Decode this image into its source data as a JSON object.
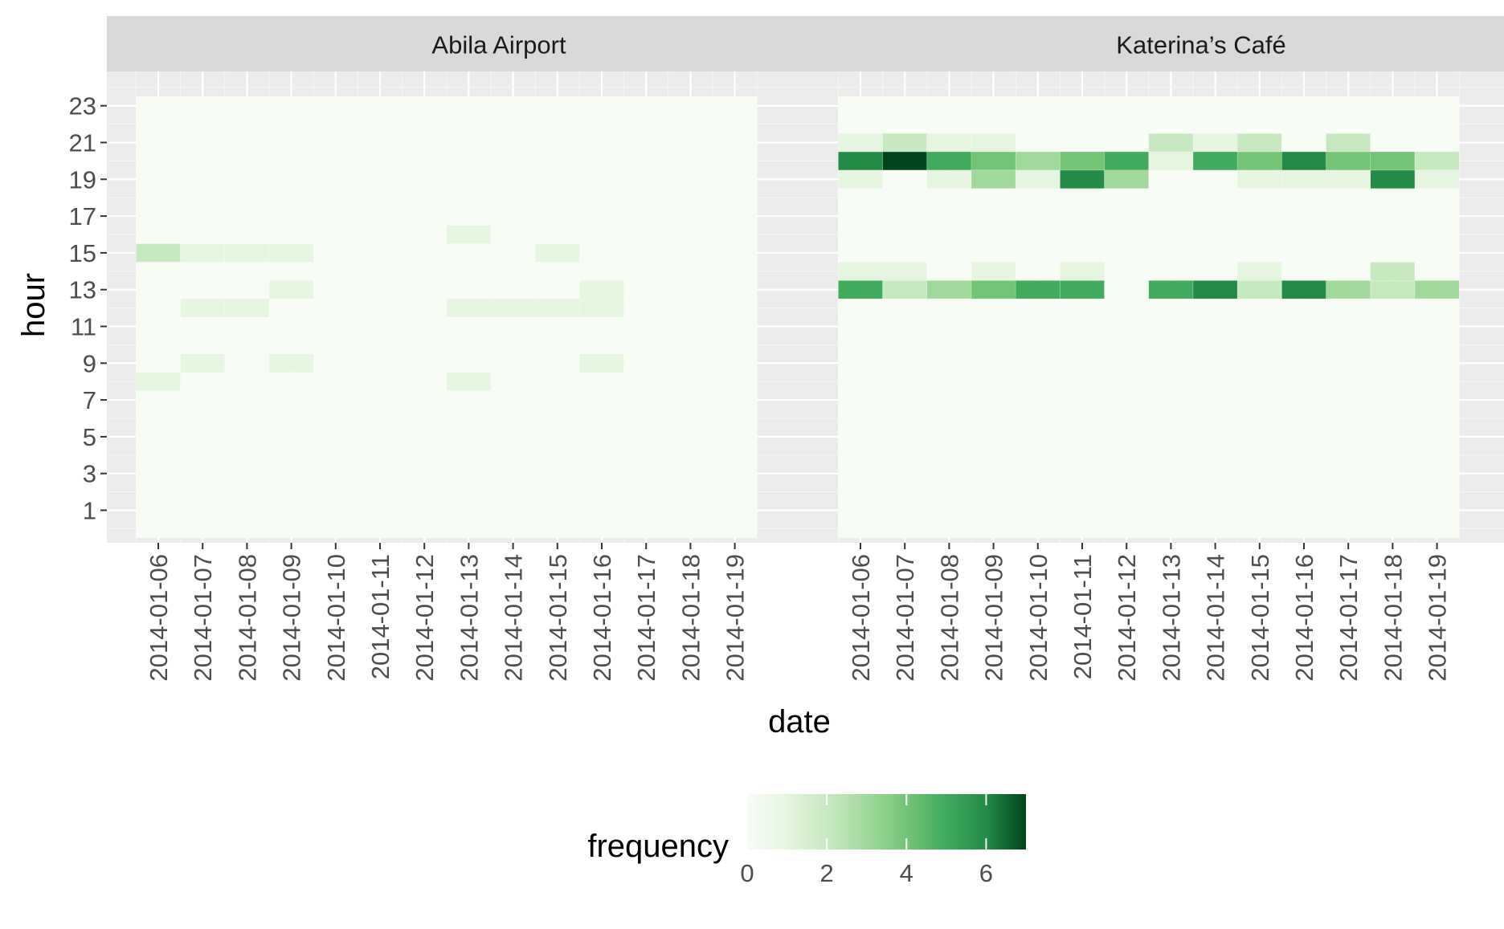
{
  "chart_data": {
    "type": "heatmap",
    "xlabel": "date",
    "ylabel": "hour",
    "x_categories": [
      "2014-01-06",
      "2014-01-07",
      "2014-01-08",
      "2014-01-09",
      "2014-01-10",
      "2014-01-11",
      "2014-01-12",
      "2014-01-13",
      "2014-01-14",
      "2014-01-15",
      "2014-01-16",
      "2014-01-17",
      "2014-01-18",
      "2014-01-19"
    ],
    "y_ticks": [
      1,
      3,
      5,
      7,
      9,
      11,
      13,
      15,
      17,
      19,
      21,
      23
    ],
    "y_range": [
      0,
      23
    ],
    "grid": true,
    "legend": {
      "title": "frequency",
      "position": "bottom",
      "ticks": [
        0,
        2,
        4,
        6
      ],
      "range": [
        0,
        7
      ],
      "color_low": "#f7fcf5",
      "color_high": "#00441b"
    },
    "panels": [
      {
        "title": "Abila Airport",
        "cells": [
          {
            "date": "2014-01-06",
            "hour": 8,
            "value": 1
          },
          {
            "date": "2014-01-06",
            "hour": 15,
            "value": 2
          },
          {
            "date": "2014-01-07",
            "hour": 9,
            "value": 1
          },
          {
            "date": "2014-01-07",
            "hour": 12,
            "value": 1
          },
          {
            "date": "2014-01-07",
            "hour": 15,
            "value": 1
          },
          {
            "date": "2014-01-08",
            "hour": 12,
            "value": 1
          },
          {
            "date": "2014-01-08",
            "hour": 15,
            "value": 1
          },
          {
            "date": "2014-01-09",
            "hour": 9,
            "value": 1
          },
          {
            "date": "2014-01-09",
            "hour": 13,
            "value": 1
          },
          {
            "date": "2014-01-09",
            "hour": 15,
            "value": 1
          },
          {
            "date": "2014-01-13",
            "hour": 8,
            "value": 1
          },
          {
            "date": "2014-01-13",
            "hour": 12,
            "value": 1
          },
          {
            "date": "2014-01-13",
            "hour": 16,
            "value": 1
          },
          {
            "date": "2014-01-14",
            "hour": 12,
            "value": 1
          },
          {
            "date": "2014-01-15",
            "hour": 12,
            "value": 1
          },
          {
            "date": "2014-01-15",
            "hour": 15,
            "value": 1
          },
          {
            "date": "2014-01-16",
            "hour": 9,
            "value": 1
          },
          {
            "date": "2014-01-16",
            "hour": 12,
            "value": 1
          },
          {
            "date": "2014-01-16",
            "hour": 13,
            "value": 1
          }
        ]
      },
      {
        "title": "Katerina’s Café",
        "cells": [
          {
            "date": "2014-01-06",
            "hour": 13,
            "value": 5
          },
          {
            "date": "2014-01-06",
            "hour": 14,
            "value": 1
          },
          {
            "date": "2014-01-06",
            "hour": 19,
            "value": 1
          },
          {
            "date": "2014-01-06",
            "hour": 20,
            "value": 6
          },
          {
            "date": "2014-01-06",
            "hour": 21,
            "value": 1
          },
          {
            "date": "2014-01-07",
            "hour": 13,
            "value": 2
          },
          {
            "date": "2014-01-07",
            "hour": 14,
            "value": 1
          },
          {
            "date": "2014-01-07",
            "hour": 20,
            "value": 7
          },
          {
            "date": "2014-01-07",
            "hour": 21,
            "value": 2
          },
          {
            "date": "2014-01-08",
            "hour": 13,
            "value": 3
          },
          {
            "date": "2014-01-08",
            "hour": 19,
            "value": 1
          },
          {
            "date": "2014-01-08",
            "hour": 20,
            "value": 5
          },
          {
            "date": "2014-01-08",
            "hour": 21,
            "value": 1
          },
          {
            "date": "2014-01-09",
            "hour": 13,
            "value": 4
          },
          {
            "date": "2014-01-09",
            "hour": 14,
            "value": 1
          },
          {
            "date": "2014-01-09",
            "hour": 19,
            "value": 3
          },
          {
            "date": "2014-01-09",
            "hour": 20,
            "value": 4
          },
          {
            "date": "2014-01-09",
            "hour": 21,
            "value": 1
          },
          {
            "date": "2014-01-10",
            "hour": 13,
            "value": 5
          },
          {
            "date": "2014-01-10",
            "hour": 19,
            "value": 1
          },
          {
            "date": "2014-01-10",
            "hour": 20,
            "value": 3
          },
          {
            "date": "2014-01-11",
            "hour": 13,
            "value": 5
          },
          {
            "date": "2014-01-11",
            "hour": 14,
            "value": 1
          },
          {
            "date": "2014-01-11",
            "hour": 19,
            "value": 6
          },
          {
            "date": "2014-01-11",
            "hour": 20,
            "value": 4
          },
          {
            "date": "2014-01-12",
            "hour": 19,
            "value": 3
          },
          {
            "date": "2014-01-12",
            "hour": 20,
            "value": 5
          },
          {
            "date": "2014-01-13",
            "hour": 13,
            "value": 5
          },
          {
            "date": "2014-01-13",
            "hour": 20,
            "value": 1
          },
          {
            "date": "2014-01-13",
            "hour": 21,
            "value": 2
          },
          {
            "date": "2014-01-14",
            "hour": 13,
            "value": 6
          },
          {
            "date": "2014-01-14",
            "hour": 20,
            "value": 5
          },
          {
            "date": "2014-01-14",
            "hour": 21,
            "value": 1
          },
          {
            "date": "2014-01-15",
            "hour": 13,
            "value": 2
          },
          {
            "date": "2014-01-15",
            "hour": 14,
            "value": 1
          },
          {
            "date": "2014-01-15",
            "hour": 19,
            "value": 1
          },
          {
            "date": "2014-01-15",
            "hour": 20,
            "value": 4
          },
          {
            "date": "2014-01-15",
            "hour": 21,
            "value": 2
          },
          {
            "date": "2014-01-16",
            "hour": 13,
            "value": 6
          },
          {
            "date": "2014-01-16",
            "hour": 19,
            "value": 1
          },
          {
            "date": "2014-01-16",
            "hour": 20,
            "value": 6
          },
          {
            "date": "2014-01-17",
            "hour": 13,
            "value": 3
          },
          {
            "date": "2014-01-17",
            "hour": 19,
            "value": 1
          },
          {
            "date": "2014-01-17",
            "hour": 20,
            "value": 4
          },
          {
            "date": "2014-01-17",
            "hour": 21,
            "value": 2
          },
          {
            "date": "2014-01-18",
            "hour": 13,
            "value": 2
          },
          {
            "date": "2014-01-18",
            "hour": 14,
            "value": 2
          },
          {
            "date": "2014-01-18",
            "hour": 19,
            "value": 6
          },
          {
            "date": "2014-01-18",
            "hour": 20,
            "value": 4
          },
          {
            "date": "2014-01-19",
            "hour": 13,
            "value": 3
          },
          {
            "date": "2014-01-19",
            "hour": 19,
            "value": 1
          },
          {
            "date": "2014-01-19",
            "hour": 20,
            "value": 2
          }
        ]
      }
    ]
  }
}
